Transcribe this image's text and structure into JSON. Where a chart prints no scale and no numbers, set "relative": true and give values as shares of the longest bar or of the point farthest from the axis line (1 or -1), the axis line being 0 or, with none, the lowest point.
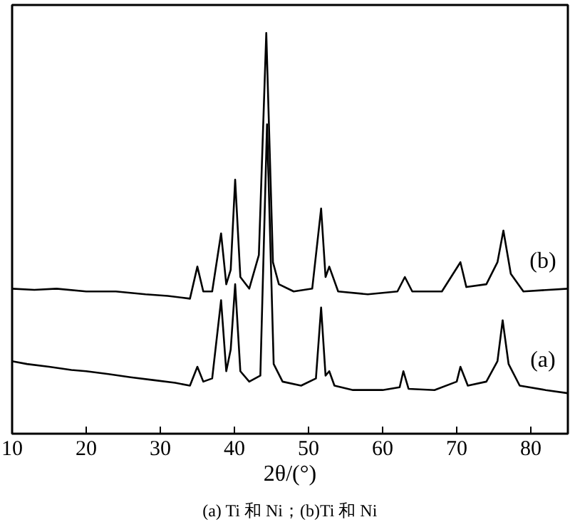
{
  "chart_data": {
    "type": "line",
    "relative": true,
    "xlabel": "2θ/(°)",
    "xlim": [
      10,
      85
    ],
    "xticks": [
      10,
      20,
      30,
      40,
      50,
      60,
      70,
      80
    ],
    "grid": false,
    "marker": "none",
    "line_style": "solid",
    "annotations": [
      "(a) Ti 和 Ni；(b)Ti 和 Ni"
    ],
    "series": [
      {
        "name": "(b)",
        "color": "#000000",
        "x": [
          10,
          13,
          16,
          20,
          24,
          28,
          31,
          34,
          35,
          35.8,
          37,
          38.2,
          38.9,
          39.5,
          40.1,
          40.8,
          42,
          43.3,
          44.3,
          45.2,
          46,
          48,
          50.5,
          51.7,
          52.3,
          52.8,
          54,
          58,
          62,
          63,
          64,
          68,
          70.5,
          71.3,
          74,
          75.5,
          76.3,
          77.3,
          79,
          85
        ],
        "values": [
          0.362,
          0.359,
          0.362,
          0.355,
          0.355,
          0.348,
          0.344,
          0.337,
          0.417,
          0.355,
          0.355,
          0.5,
          0.373,
          0.409,
          0.634,
          0.391,
          0.362,
          0.446,
          1,
          0.428,
          0.373,
          0.355,
          0.362,
          0.562,
          0.391,
          0.417,
          0.355,
          0.348,
          0.355,
          0.391,
          0.355,
          0.355,
          0.428,
          0.366,
          0.373,
          0.428,
          0.507,
          0.399,
          0.355,
          0.362
        ]
      },
      {
        "name": "(a)",
        "color": "#000000",
        "x": [
          10,
          12,
          15,
          18,
          20,
          23,
          26,
          29,
          32,
          34,
          35,
          35.8,
          37,
          38.2,
          38.9,
          39.5,
          40.1,
          40.8,
          42,
          43.5,
          44.4,
          45.3,
          46.5,
          49,
          51,
          51.7,
          52.3,
          52.8,
          53.5,
          56,
          60,
          62.3,
          62.8,
          63.5,
          67,
          70,
          70.5,
          71.5,
          74,
          75.5,
          76.2,
          77,
          78.5,
          82,
          85
        ],
        "values": [
          0.181,
          0.174,
          0.167,
          0.159,
          0.156,
          0.149,
          0.141,
          0.134,
          0.127,
          0.12,
          0.167,
          0.13,
          0.138,
          0.333,
          0.156,
          0.21,
          0.373,
          0.156,
          0.13,
          0.145,
          0.772,
          0.174,
          0.13,
          0.12,
          0.138,
          0.315,
          0.145,
          0.156,
          0.12,
          0.109,
          0.109,
          0.116,
          0.156,
          0.112,
          0.109,
          0.13,
          0.167,
          0.12,
          0.13,
          0.181,
          0.283,
          0.174,
          0.12,
          0.109,
          0.101
        ]
      }
    ]
  }
}
